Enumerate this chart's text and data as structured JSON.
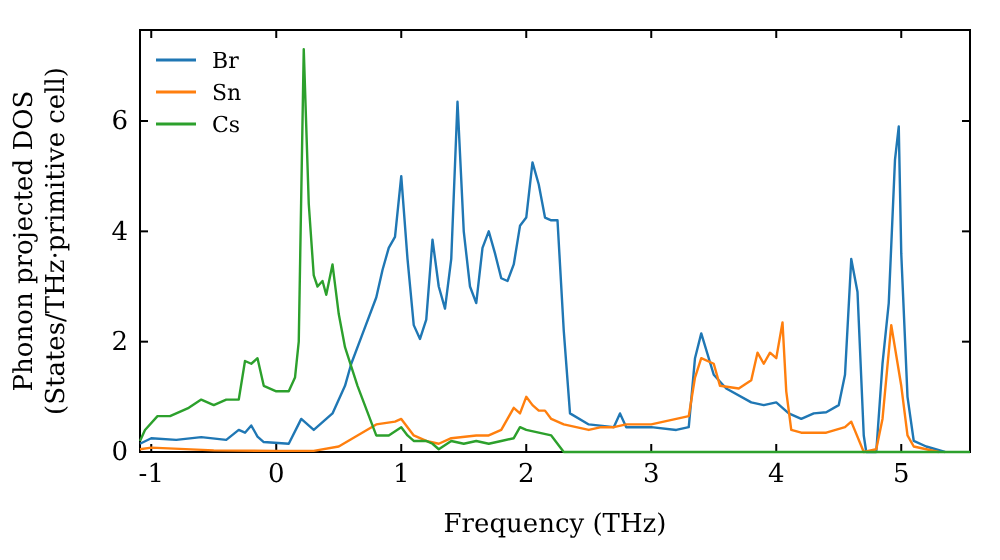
{
  "chart_data": {
    "type": "line",
    "xlabel": "Frequency (THz)",
    "ylabel": "Phonon projected DOS\n(States/THz·primitive cell)",
    "xlim": [
      -1.09,
      5.55
    ],
    "ylim": [
      0,
      7.65
    ],
    "xticks": [
      -1,
      0,
      1,
      2,
      3,
      4,
      5
    ],
    "yticks": [
      0,
      2,
      4,
      6
    ],
    "legend": "top left",
    "grid": false,
    "marker": "none",
    "line_style": "solid",
    "series": [
      {
        "name": "Br",
        "color": "#1f77b4",
        "x": [
          -1.09,
          -1.0,
          -0.8,
          -0.6,
          -0.4,
          -0.3,
          -0.25,
          -0.2,
          -0.15,
          -0.1,
          0.1,
          0.2,
          0.3,
          0.45,
          0.55,
          0.6,
          0.7,
          0.8,
          0.85,
          0.9,
          0.95,
          1.0,
          1.05,
          1.1,
          1.15,
          1.2,
          1.25,
          1.3,
          1.35,
          1.4,
          1.45,
          1.5,
          1.55,
          1.6,
          1.65,
          1.7,
          1.75,
          1.8,
          1.85,
          1.9,
          1.95,
          2.0,
          2.05,
          2.1,
          2.15,
          2.2,
          2.25,
          2.3,
          2.35,
          2.5,
          2.7,
          2.75,
          2.8,
          3.0,
          3.2,
          3.3,
          3.35,
          3.4,
          3.5,
          3.6,
          3.8,
          3.9,
          4.0,
          4.1,
          4.2,
          4.3,
          4.4,
          4.5,
          4.55,
          4.6,
          4.65,
          4.7,
          4.72,
          4.8,
          4.85,
          4.9,
          4.95,
          4.98,
          5.0,
          5.05,
          5.1,
          5.2,
          5.35
        ],
        "values": [
          0.15,
          0.25,
          0.22,
          0.27,
          0.22,
          0.4,
          0.35,
          0.48,
          0.28,
          0.18,
          0.15,
          0.6,
          0.4,
          0.7,
          1.2,
          1.6,
          2.2,
          2.8,
          3.3,
          3.7,
          3.9,
          5.0,
          3.5,
          2.3,
          2.05,
          2.4,
          3.85,
          3.0,
          2.6,
          3.5,
          6.35,
          4.0,
          3.0,
          2.7,
          3.7,
          4.0,
          3.6,
          3.15,
          3.1,
          3.4,
          4.1,
          4.25,
          5.25,
          4.85,
          4.25,
          4.2,
          4.2,
          2.2,
          0.7,
          0.5,
          0.45,
          0.7,
          0.45,
          0.45,
          0.4,
          0.45,
          1.7,
          2.15,
          1.4,
          1.15,
          0.9,
          0.85,
          0.9,
          0.7,
          0.6,
          0.7,
          0.72,
          0.85,
          1.4,
          3.5,
          2.9,
          0.3,
          0,
          0,
          1.6,
          2.7,
          5.3,
          5.9,
          3.6,
          1.0,
          0.2,
          0.1,
          0.0
        ]
      },
      {
        "name": "Sn",
        "color": "#ff7f0e",
        "x": [
          -1.09,
          -1.0,
          -0.5,
          0.0,
          0.3,
          0.5,
          0.65,
          0.8,
          0.95,
          1.0,
          1.1,
          1.2,
          1.3,
          1.4,
          1.6,
          1.7,
          1.8,
          1.85,
          1.9,
          1.95,
          2.0,
          2.05,
          2.1,
          2.15,
          2.2,
          2.3,
          2.5,
          2.6,
          2.7,
          2.8,
          3.0,
          3.1,
          3.2,
          3.3,
          3.35,
          3.4,
          3.5,
          3.55,
          3.7,
          3.8,
          3.85,
          3.9,
          3.95,
          4.0,
          4.05,
          4.08,
          4.12,
          4.2,
          4.4,
          4.55,
          4.6,
          4.7,
          4.8,
          4.85,
          4.92,
          5.0,
          5.05,
          5.1,
          5.3
        ],
        "values": [
          0.05,
          0.08,
          0.03,
          0.02,
          0.02,
          0.1,
          0.3,
          0.5,
          0.55,
          0.6,
          0.3,
          0.2,
          0.15,
          0.25,
          0.3,
          0.3,
          0.4,
          0.6,
          0.8,
          0.7,
          1.0,
          0.85,
          0.75,
          0.75,
          0.6,
          0.5,
          0.4,
          0.45,
          0.45,
          0.5,
          0.5,
          0.55,
          0.6,
          0.65,
          1.35,
          1.7,
          1.6,
          1.2,
          1.15,
          1.3,
          1.8,
          1.6,
          1.8,
          1.7,
          2.35,
          1.1,
          0.4,
          0.35,
          0.35,
          0.45,
          0.55,
          0.0,
          0.05,
          0.6,
          2.3,
          1.2,
          0.3,
          0.1,
          0.0
        ]
      },
      {
        "name": "Cs",
        "color": "#2ca02c",
        "x": [
          -1.09,
          -1.05,
          -0.95,
          -0.85,
          -0.7,
          -0.6,
          -0.5,
          -0.4,
          -0.3,
          -0.25,
          -0.2,
          -0.15,
          -0.1,
          0.0,
          0.1,
          0.15,
          0.18,
          0.22,
          0.26,
          0.3,
          0.33,
          0.37,
          0.4,
          0.45,
          0.5,
          0.55,
          0.65,
          0.75,
          0.8,
          0.9,
          1.0,
          1.05,
          1.1,
          1.2,
          1.25,
          1.3,
          1.4,
          1.5,
          1.6,
          1.7,
          1.8,
          1.9,
          1.95,
          2.0,
          2.1,
          2.2,
          2.3,
          5.55
        ],
        "values": [
          0.2,
          0.4,
          0.65,
          0.65,
          0.8,
          0.95,
          0.85,
          0.95,
          0.95,
          1.65,
          1.6,
          1.7,
          1.2,
          1.1,
          1.1,
          1.35,
          2.0,
          7.3,
          4.5,
          3.2,
          3.0,
          3.1,
          2.85,
          3.4,
          2.5,
          1.9,
          1.2,
          0.6,
          0.3,
          0.3,
          0.45,
          0.3,
          0.2,
          0.2,
          0.15,
          0.05,
          0.2,
          0.15,
          0.2,
          0.15,
          0.2,
          0.25,
          0.45,
          0.4,
          0.35,
          0.3,
          0.0,
          0.0
        ]
      }
    ]
  }
}
